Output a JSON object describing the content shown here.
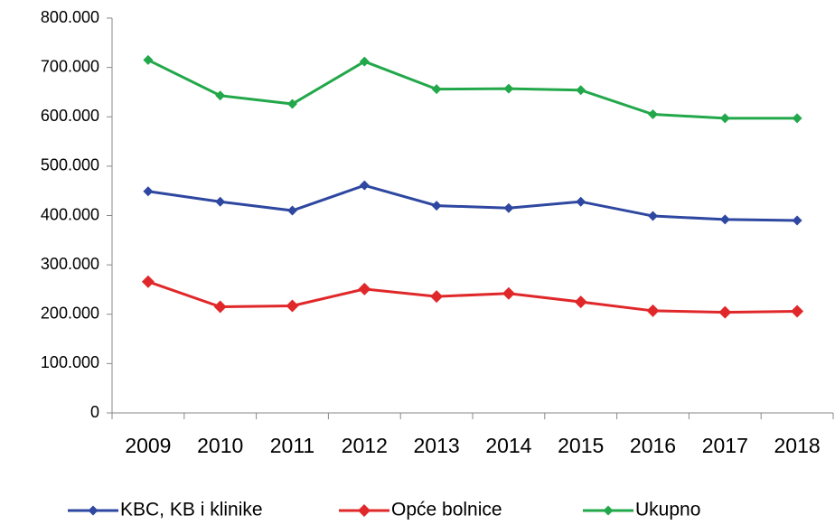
{
  "chart_data": {
    "type": "line",
    "categories": [
      "2009",
      "2010",
      "2011",
      "2012",
      "2013",
      "2014",
      "2015",
      "2016",
      "2017",
      "2018"
    ],
    "series": [
      {
        "name": "KBC, KB i klinike",
        "color": "#2e47a0",
        "values": [
          449000,
          428000,
          410000,
          461000,
          420000,
          415000,
          428000,
          399000,
          392000,
          390000
        ]
      },
      {
        "name": "Opće bolnice",
        "color": "#e0282a",
        "values": [
          266000,
          215000,
          217000,
          251000,
          236000,
          242000,
          225000,
          207000,
          204000,
          206000
        ]
      },
      {
        "name": "Ukupno",
        "color": "#22a84a",
        "values": [
          715000,
          643000,
          626000,
          712000,
          656000,
          657000,
          654000,
          605000,
          597000,
          597000
        ]
      }
    ],
    "ylim": [
      0,
      800000
    ],
    "yticks": [
      0,
      {
        "value": 100000,
        "label": "100.000"
      },
      {
        "value": 200000,
        "label": "200.000"
      },
      {
        "value": 300000,
        "label": "300.000"
      },
      {
        "value": 400000,
        "label": "400.000"
      },
      {
        "value": 500000,
        "label": "500.000"
      },
      {
        "value": 600000,
        "label": "600.000"
      },
      {
        "value": 700000,
        "label": "700.000"
      },
      {
        "value": 800000,
        "label": "800.000"
      }
    ],
    "legend": "bottom"
  }
}
